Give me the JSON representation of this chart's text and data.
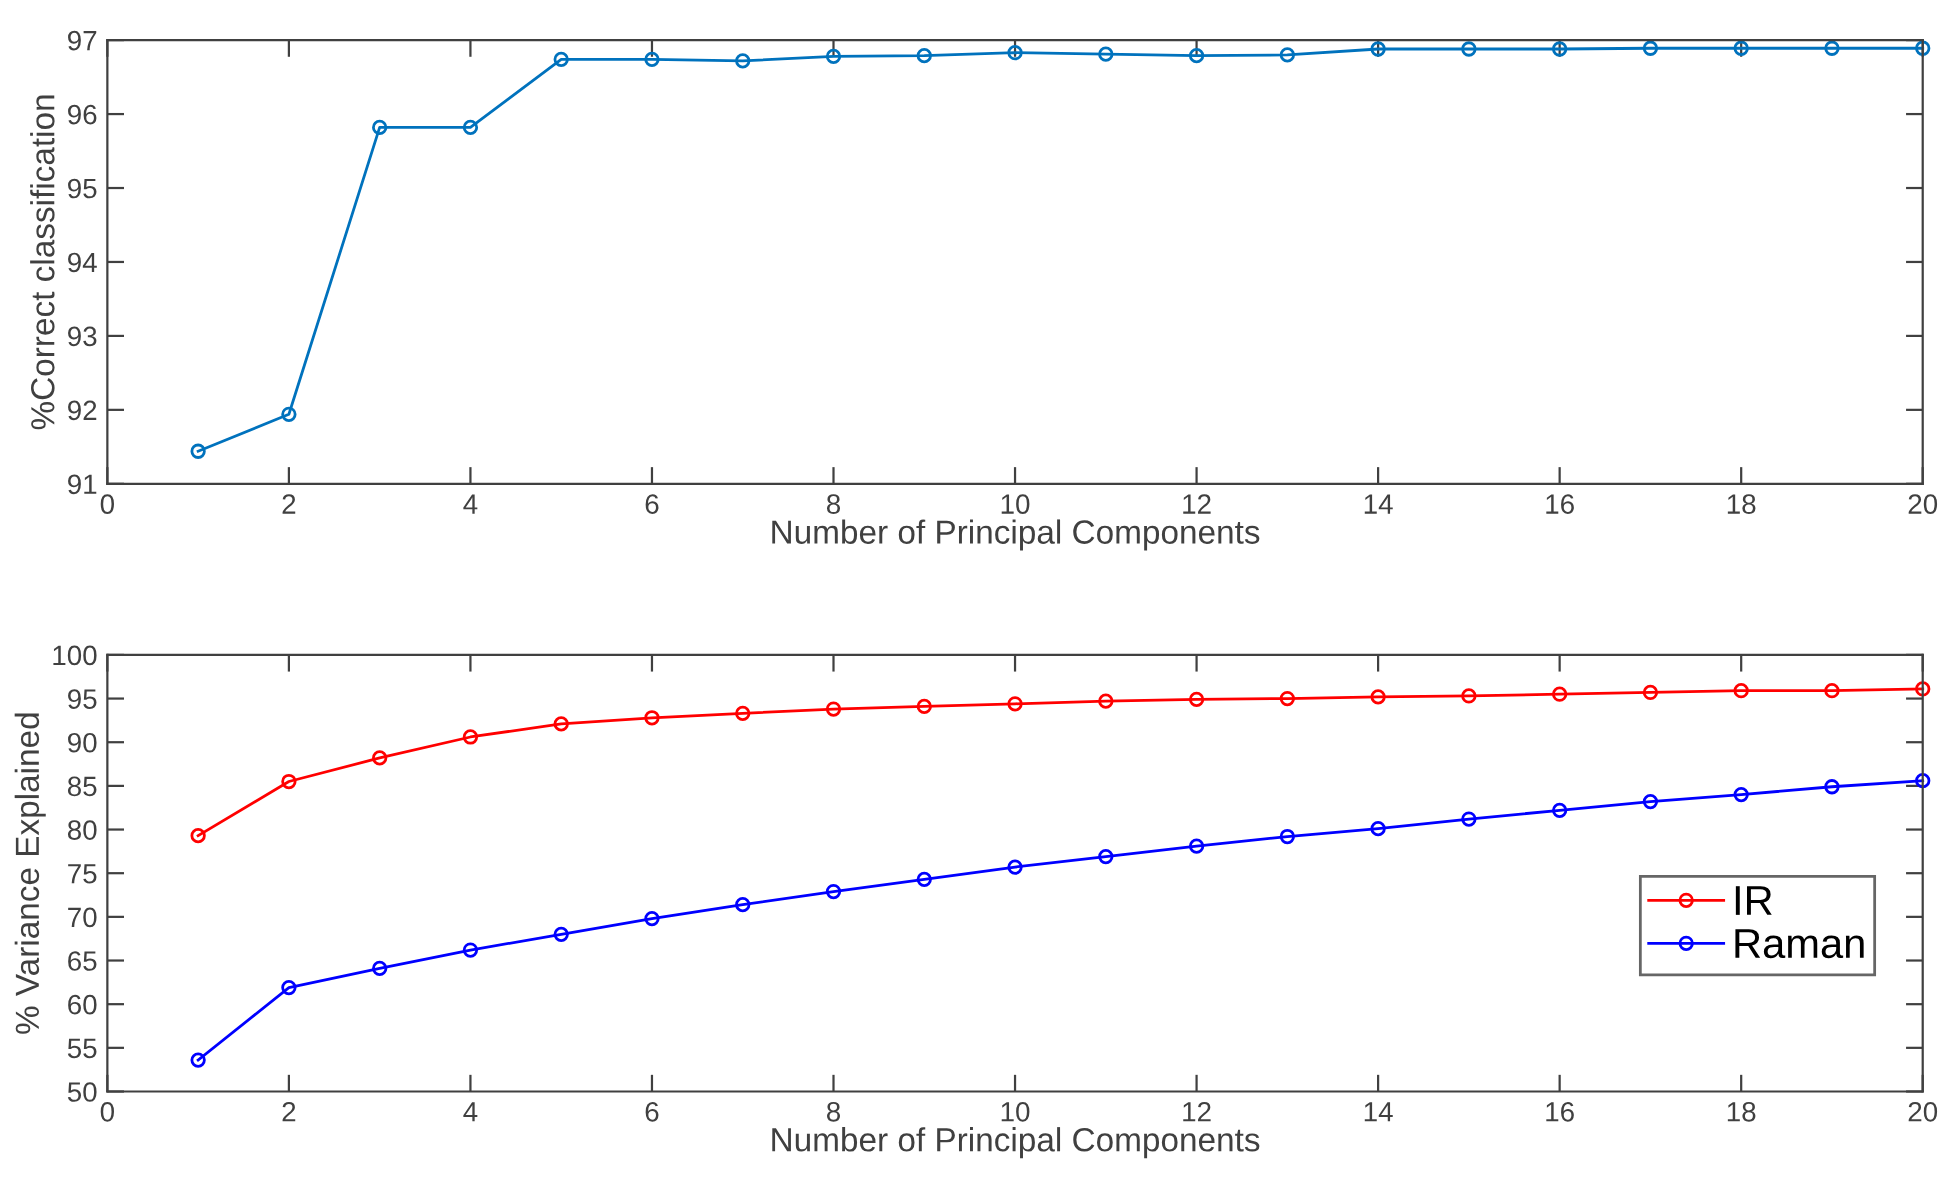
{
  "chart_data": [
    {
      "type": "line",
      "xlabel": "Number of Principal Components",
      "ylabel": "%Correct classification",
      "x": [
        1,
        2,
        3,
        4,
        5,
        6,
        7,
        8,
        9,
        10,
        11,
        12,
        13,
        14,
        15,
        16,
        17,
        18,
        19,
        20
      ],
      "series": [
        {
          "color": "#0072bd",
          "values": [
            91.44,
            91.94,
            95.82,
            95.82,
            96.74,
            96.74,
            96.72,
            96.78,
            96.79,
            96.83,
            96.81,
            96.79,
            96.8,
            96.88,
            96.88,
            96.88,
            96.89,
            96.89,
            96.89,
            96.89
          ]
        }
      ],
      "xlim": [
        0,
        20
      ],
      "xticks": [
        0,
        2,
        4,
        6,
        8,
        10,
        12,
        14,
        16,
        18,
        20
      ],
      "ylim": [
        91,
        97
      ],
      "yticks": [
        91,
        92,
        93,
        94,
        95,
        96,
        97
      ],
      "marker": "circle",
      "line_style": "solid",
      "grid": false,
      "legend": false
    },
    {
      "type": "line",
      "xlabel": "Number of Principal Components",
      "ylabel": "% Variance Explained",
      "x": [
        1,
        2,
        3,
        4,
        5,
        6,
        7,
        8,
        9,
        10,
        11,
        12,
        13,
        14,
        15,
        16,
        17,
        18,
        19,
        20
      ],
      "series": [
        {
          "name": "IR",
          "color": "#ff0000",
          "values": [
            79.3,
            85.5,
            88.2,
            90.6,
            92.1,
            92.8,
            93.3,
            93.8,
            94.1,
            94.4,
            94.7,
            94.9,
            95.0,
            95.2,
            95.3,
            95.5,
            95.7,
            95.9,
            95.9,
            96.1
          ]
        },
        {
          "name": "Raman",
          "color": "#0000ff",
          "values": [
            53.6,
            61.9,
            64.1,
            66.2,
            68.0,
            69.8,
            71.4,
            72.9,
            74.3,
            75.7,
            76.9,
            78.1,
            79.2,
            80.1,
            81.2,
            82.2,
            83.2,
            84.0,
            84.9,
            85.6
          ]
        }
      ],
      "xlim": [
        0,
        20
      ],
      "xticks": [
        0,
        2,
        4,
        6,
        8,
        10,
        12,
        14,
        16,
        18,
        20
      ],
      "ylim": [
        50,
        100
      ],
      "yticks": [
        50,
        55,
        60,
        65,
        70,
        75,
        80,
        85,
        90,
        95,
        100
      ],
      "marker": "circle",
      "line_style": "solid",
      "grid": false,
      "legend": "right"
    }
  ]
}
